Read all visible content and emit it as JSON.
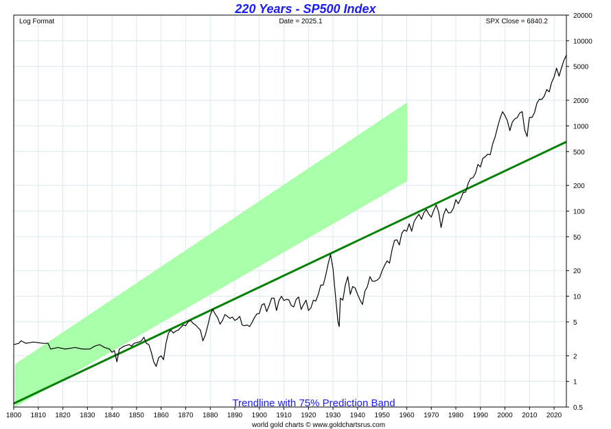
{
  "chart_data": {
    "type": "line",
    "title": "220 Years - SP500 Index",
    "header_left": "Log Format",
    "header_center": "Date = 2025.1",
    "header_right": "SPX Close = 6840.2",
    "annotation": "Trendline with 75% Prediction Band",
    "credit": "world gold charts © www.goldchartsrus.com",
    "x_range": [
      1800,
      2025
    ],
    "y_range": [
      0.5,
      20000
    ],
    "y_scale": "log",
    "x_ticks": [
      "1800",
      "1810",
      "1820",
      "1830",
      "1840",
      "1850",
      "1860",
      "1870",
      "1880",
      "1890",
      "1900",
      "1910",
      "1920",
      "1930",
      "1940",
      "1950",
      "1960",
      "1970",
      "1980",
      "1990",
      "2000",
      "2010",
      "2020"
    ],
    "y_ticks": [
      "0.5",
      "1",
      "2",
      "5",
      "10",
      "20",
      "50",
      "100",
      "200",
      "500",
      "1000",
      "2000",
      "5000",
      "10000",
      "20000"
    ],
    "trendline": {
      "start": [
        1800,
        0.55
      ],
      "end": [
        2025,
        650
      ],
      "band_factor": 2.9,
      "color": "#008000",
      "band_color": "#aaffaa"
    },
    "series": [
      {
        "name": "SPX Close",
        "color": "#000000",
        "points": [
          [
            1800,
            2.7
          ],
          [
            1802,
            2.8
          ],
          [
            1803,
            3.0
          ],
          [
            1805,
            2.8
          ],
          [
            1808,
            2.9
          ],
          [
            1812,
            2.8
          ],
          [
            1814,
            2.8
          ],
          [
            1815,
            2.4
          ],
          [
            1818,
            2.5
          ],
          [
            1821,
            2.4
          ],
          [
            1825,
            2.5
          ],
          [
            1828,
            2.4
          ],
          [
            1831,
            2.4
          ],
          [
            1833,
            2.6
          ],
          [
            1835,
            2.7
          ],
          [
            1837,
            2.5
          ],
          [
            1839,
            2.4
          ],
          [
            1840,
            2.2
          ],
          [
            1841,
            2.3
          ],
          [
            1842,
            1.7
          ],
          [
            1843,
            2.4
          ],
          [
            1845,
            2.6
          ],
          [
            1847,
            2.7
          ],
          [
            1848,
            2.6
          ],
          [
            1849,
            2.8
          ],
          [
            1851,
            2.9
          ],
          [
            1852,
            3.0
          ],
          [
            1853,
            3.3
          ],
          [
            1854,
            2.8
          ],
          [
            1855,
            2.7
          ],
          [
            1856,
            2.2
          ],
          [
            1857,
            1.7
          ],
          [
            1858,
            1.5
          ],
          [
            1859,
            1.9
          ],
          [
            1860,
            2.0
          ],
          [
            1861,
            1.8
          ],
          [
            1862,
            2.8
          ],
          [
            1863,
            3.7
          ],
          [
            1864,
            4.0
          ],
          [
            1865,
            3.7
          ],
          [
            1866,
            3.9
          ],
          [
            1867,
            4.0
          ],
          [
            1868,
            4.3
          ],
          [
            1869,
            4.6
          ],
          [
            1870,
            4.5
          ],
          [
            1871,
            5.0
          ],
          [
            1872,
            5.2
          ],
          [
            1873,
            4.8
          ],
          [
            1874,
            4.6
          ],
          [
            1875,
            4.3
          ],
          [
            1876,
            4.0
          ],
          [
            1877,
            3.0
          ],
          [
            1878,
            3.5
          ],
          [
            1879,
            4.5
          ],
          [
            1880,
            6.0
          ],
          [
            1881,
            7.0
          ],
          [
            1882,
            6.2
          ],
          [
            1883,
            5.6
          ],
          [
            1884,
            4.7
          ],
          [
            1885,
            5.2
          ],
          [
            1886,
            6.1
          ],
          [
            1887,
            5.8
          ],
          [
            1888,
            5.5
          ],
          [
            1889,
            5.7
          ],
          [
            1890,
            5.2
          ],
          [
            1891,
            5.4
          ],
          [
            1892,
            5.8
          ],
          [
            1893,
            4.6
          ],
          [
            1894,
            4.5
          ],
          [
            1895,
            4.6
          ],
          [
            1896,
            4.4
          ],
          [
            1897,
            4.9
          ],
          [
            1898,
            5.6
          ],
          [
            1899,
            6.2
          ],
          [
            1900,
            6.3
          ],
          [
            1901,
            7.9
          ],
          [
            1902,
            8.2
          ],
          [
            1903,
            6.6
          ],
          [
            1904,
            7.8
          ],
          [
            1905,
            9.5
          ],
          [
            1906,
            9.5
          ],
          [
            1907,
            6.8
          ],
          [
            1908,
            8.9
          ],
          [
            1909,
            10.0
          ],
          [
            1910,
            8.9
          ],
          [
            1911,
            9.2
          ],
          [
            1912,
            9.1
          ],
          [
            1913,
            7.8
          ],
          [
            1914,
            7.5
          ],
          [
            1915,
            9.2
          ],
          [
            1916,
            9.8
          ],
          [
            1917,
            7.0
          ],
          [
            1918,
            8.0
          ],
          [
            1919,
            9.0
          ],
          [
            1920,
            6.8
          ],
          [
            1921,
            7.3
          ],
          [
            1922,
            9.0
          ],
          [
            1923,
            8.8
          ],
          [
            1924,
            10.5
          ],
          [
            1925,
            13.5
          ],
          [
            1926,
            13.5
          ],
          [
            1927,
            17.5
          ],
          [
            1928,
            24.0
          ],
          [
            1929,
            31.0
          ],
          [
            1930,
            21.0
          ],
          [
            1931,
            10.0
          ],
          [
            1932,
            5.0
          ],
          [
            1932.5,
            4.4
          ],
          [
            1933,
            9.5
          ],
          [
            1934,
            9.0
          ],
          [
            1935,
            13.5
          ],
          [
            1936,
            17.0
          ],
          [
            1937,
            10.5
          ],
          [
            1938,
            13.0
          ],
          [
            1939,
            12.5
          ],
          [
            1940,
            10.5
          ],
          [
            1941,
            9.0
          ],
          [
            1942,
            8.0
          ],
          [
            1943,
            11.5
          ],
          [
            1944,
            13.0
          ],
          [
            1945,
            17.0
          ],
          [
            1946,
            15.0
          ],
          [
            1947,
            15.0
          ],
          [
            1948,
            15.5
          ],
          [
            1949,
            16.5
          ],
          [
            1950,
            20.0
          ],
          [
            1951,
            23.0
          ],
          [
            1952,
            26.0
          ],
          [
            1953,
            24.5
          ],
          [
            1954,
            35.0
          ],
          [
            1955,
            45.0
          ],
          [
            1956,
            46.0
          ],
          [
            1957,
            40.0
          ],
          [
            1958,
            55.0
          ],
          [
            1959,
            60.0
          ],
          [
            1960,
            58.0
          ],
          [
            1961,
            71.0
          ],
          [
            1962,
            58.0
          ],
          [
            1963,
            75.0
          ],
          [
            1964,
            84.0
          ],
          [
            1965,
            92.0
          ],
          [
            1966,
            80.0
          ],
          [
            1967,
            96.0
          ],
          [
            1968,
            104.0
          ],
          [
            1969,
            92.0
          ],
          [
            1970,
            85.0
          ],
          [
            1971,
            102.0
          ],
          [
            1972,
            118.0
          ],
          [
            1973,
            97.0
          ],
          [
            1974,
            64.0
          ],
          [
            1975,
            90.0
          ],
          [
            1976,
            107.0
          ],
          [
            1977,
            95.0
          ],
          [
            1978,
            96.0
          ],
          [
            1979,
            108.0
          ],
          [
            1980,
            136.0
          ],
          [
            1981,
            122.0
          ],
          [
            1982,
            140.0
          ],
          [
            1983,
            165.0
          ],
          [
            1984,
            167.0
          ],
          [
            1985,
            211.0
          ],
          [
            1986,
            242.0
          ],
          [
            1987,
            247.0
          ],
          [
            1988,
            278.0
          ],
          [
            1989,
            353.0
          ],
          [
            1990,
            330.0
          ],
          [
            1991,
            417.0
          ],
          [
            1992,
            436.0
          ],
          [
            1993,
            466.0
          ],
          [
            1994,
            459.0
          ],
          [
            1995,
            616.0
          ],
          [
            1996,
            741.0
          ],
          [
            1997,
            970.0
          ],
          [
            1998,
            1229.0
          ],
          [
            1999,
            1469.0
          ],
          [
            2000,
            1320.0
          ],
          [
            2001,
            1148.0
          ],
          [
            2002,
            880.0
          ],
          [
            2003,
            1112.0
          ],
          [
            2004,
            1212.0
          ],
          [
            2005,
            1248.0
          ],
          [
            2006,
            1418.0
          ],
          [
            2007,
            1468.0
          ],
          [
            2008,
            903.0
          ],
          [
            2009,
            750.0
          ],
          [
            2009.6,
            1050.0
          ],
          [
            2010,
            1258.0
          ],
          [
            2011,
            1258.0
          ],
          [
            2012,
            1426.0
          ],
          [
            2013,
            1848.0
          ],
          [
            2014,
            2059.0
          ],
          [
            2015,
            2044.0
          ],
          [
            2016,
            2239.0
          ],
          [
            2017,
            2674.0
          ],
          [
            2018,
            2507.0
          ],
          [
            2019,
            3231.0
          ],
          [
            2020,
            3756.0
          ],
          [
            2021,
            4766.0
          ],
          [
            2022,
            3840.0
          ],
          [
            2023,
            4770.0
          ],
          [
            2024,
            5882.0
          ],
          [
            2025.1,
            6840.2
          ]
        ]
      }
    ]
  }
}
